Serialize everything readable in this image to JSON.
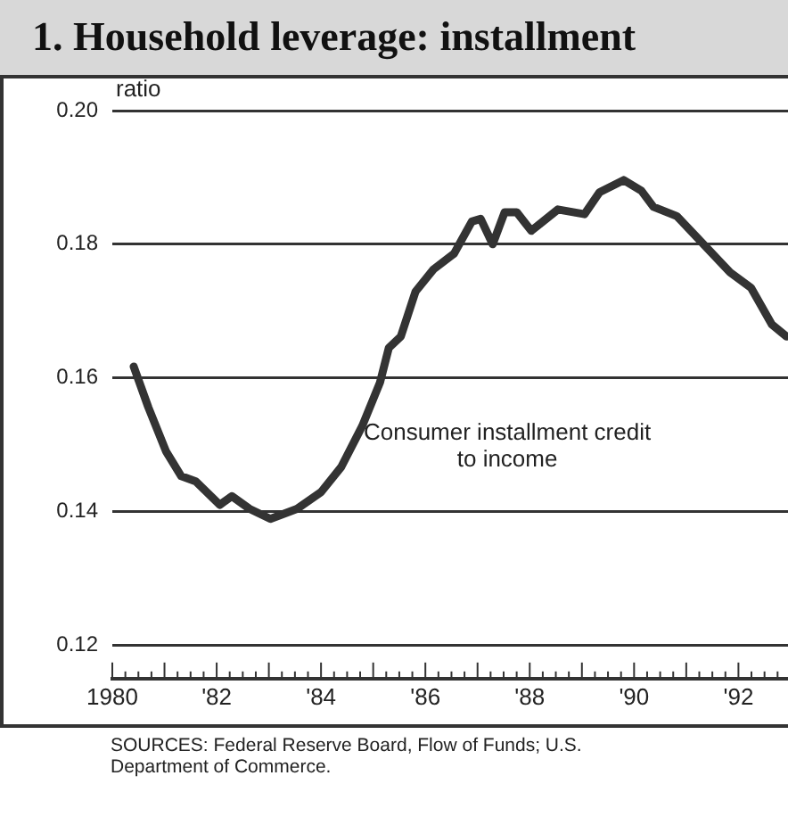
{
  "chart_data": {
    "type": "line",
    "title": "1. Household leverage: installment",
    "ylabel": "ratio",
    "annotations": [
      "SOURCES: Federal Reserve Board, Flow of Funds; U.S. Department of Commerce."
    ],
    "xlim": [
      1980,
      1992.95
    ],
    "xticks": [
      1980,
      {
        "value": 1981,
        "label": null
      },
      {
        "value": 1982,
        "label": "'82"
      },
      {
        "value": 1983,
        "label": null
      },
      {
        "value": 1984,
        "label": "'84"
      },
      {
        "value": 1985,
        "label": null
      },
      {
        "value": 1986,
        "label": "'86"
      },
      {
        "value": 1987,
        "label": null
      },
      {
        "value": 1988,
        "label": "'88"
      },
      {
        "value": 1989,
        "label": null
      },
      {
        "value": 1990,
        "label": "'90"
      },
      {
        "value": 1991,
        "label": null
      },
      {
        "value": 1992,
        "label": "'92"
      }
    ],
    "ylim": [
      0.115,
      0.2
    ],
    "yticks": [
      0.12,
      0.14,
      0.16,
      0.18,
      {
        "value": 0.2,
        "label": "0.20"
      }
    ],
    "grid": "y",
    "legend": false,
    "marker": "none",
    "line_style": "solid",
    "series": [
      {
        "name": "Consumer installment credit to income",
        "color": "#333333",
        "x": [
          1980.41,
          1980.69,
          1981.03,
          1981.32,
          1981.6,
          1982.06,
          1982.29,
          1982.63,
          1983.03,
          1983.54,
          1984.0,
          1984.39,
          1984.79,
          1985.13,
          1985.3,
          1985.53,
          1985.81,
          1986.15,
          1986.55,
          1986.89,
          1987.06,
          1987.29,
          1987.52,
          1987.75,
          1988.03,
          1988.54,
          1989.05,
          1989.34,
          1989.8,
          1990.14,
          1990.37,
          1990.82,
          1991.27,
          1991.84,
          1992.24,
          1992.64,
          1992.92
        ],
        "values": [
          0.1617,
          0.1556,
          0.149,
          0.1453,
          0.1445,
          0.141,
          0.1423,
          0.1404,
          0.1389,
          0.1404,
          0.1429,
          0.1467,
          0.1528,
          0.1593,
          0.1645,
          0.1662,
          0.1729,
          0.1762,
          0.1786,
          0.1834,
          0.1838,
          0.18,
          0.1848,
          0.1848,
          0.182,
          0.1852,
          0.1845,
          0.1878,
          0.1896,
          0.188,
          0.1856,
          0.1842,
          0.1805,
          0.1758,
          0.1735,
          0.168,
          0.1662
        ]
      }
    ]
  }
}
